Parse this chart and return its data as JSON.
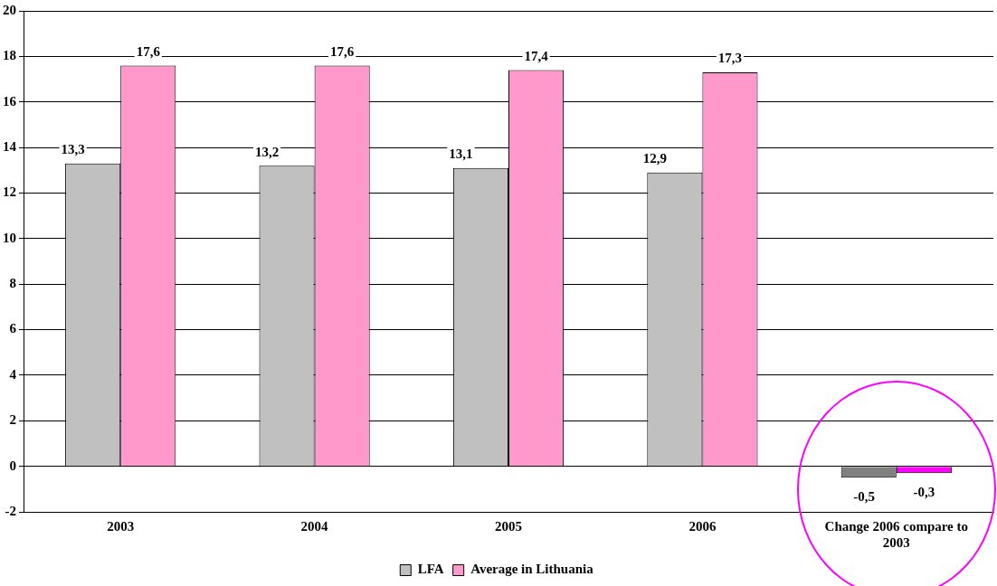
{
  "chart_data": {
    "type": "bar",
    "categories": [
      "2003",
      "2004",
      "2005",
      "2006",
      "Change 2006 compare to 2003"
    ],
    "series": [
      {
        "name": "LFA",
        "color": "#c0c0c0",
        "colors": [
          "#c0c0c0",
          "#c0c0c0",
          "#c0c0c0",
          "#c0c0c0",
          "#808080"
        ],
        "values": [
          13.3,
          13.2,
          13.1,
          12.9,
          -0.5
        ],
        "value_labels": [
          "13,3",
          "13,2",
          "13,1",
          "12,9",
          "-0,5"
        ]
      },
      {
        "name": "Average in Lithuania",
        "color": "#ff99cc",
        "colors": [
          "#ff99cc",
          "#ff99cc",
          "#ff99cc",
          "#ff99cc",
          "#ff00ff"
        ],
        "values": [
          17.6,
          17.6,
          17.4,
          17.3,
          -0.3
        ],
        "value_labels": [
          "17,6",
          "17,6",
          "17,4",
          "17,3",
          "-0,3"
        ]
      }
    ],
    "ylim": [
      -2,
      20
    ],
    "yticks": [
      -2,
      0,
      2,
      4,
      6,
      8,
      10,
      12,
      14,
      16,
      18,
      20
    ],
    "grid": "y",
    "legend": "bottom"
  }
}
